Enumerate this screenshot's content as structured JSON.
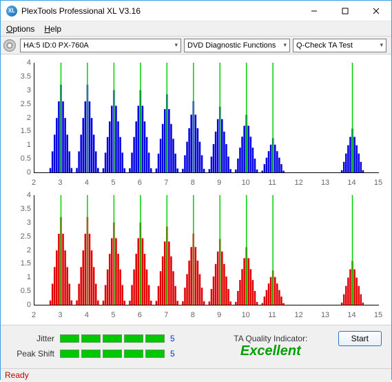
{
  "window": {
    "title": "PlexTools Professional XL V3.16",
    "icon_text": "XL"
  },
  "menu": {
    "options": "Options",
    "help": "Help"
  },
  "toolbar": {
    "drive": "HA:5 ID:0   PX-760A",
    "functions": "DVD Diagnostic Functions",
    "test": "Q-Check TA Test"
  },
  "chart_cfg": {
    "ymax": 4,
    "ytick_step": 0.5,
    "xmin": 2,
    "xmax": 15,
    "green_lines": [
      3,
      4,
      5,
      6,
      7,
      8,
      9,
      10,
      11,
      14
    ],
    "bar_color_top": "#0000e0",
    "bar_color_bottom": "#e00000",
    "green_color": "#00d000",
    "axis_color": "#000000",
    "tick_color": "#666666"
  },
  "series": {
    "peaks": [
      {
        "c": 3,
        "h": 3.2
      },
      {
        "c": 4,
        "h": 3.2
      },
      {
        "c": 5,
        "h": 3.0
      },
      {
        "c": 6,
        "h": 3.0
      },
      {
        "c": 7,
        "h": 2.85
      },
      {
        "c": 8,
        "h": 2.6
      },
      {
        "c": 9,
        "h": 2.4
      },
      {
        "c": 10,
        "h": 2.1
      },
      {
        "c": 11,
        "h": 1.25
      },
      {
        "c": 14,
        "h": 1.6
      }
    ],
    "cluster_width": 0.8,
    "bars_per_cluster": 11
  },
  "metrics": {
    "jitter_label": "Jitter",
    "jitter_val": "5",
    "peak_label": "Peak Shift",
    "peak_val": "5",
    "segments": 5
  },
  "quality": {
    "label": "TA Quality Indicator:",
    "value": "Excellent",
    "color": "#00a000"
  },
  "start_label": "Start",
  "status": "Ready"
}
